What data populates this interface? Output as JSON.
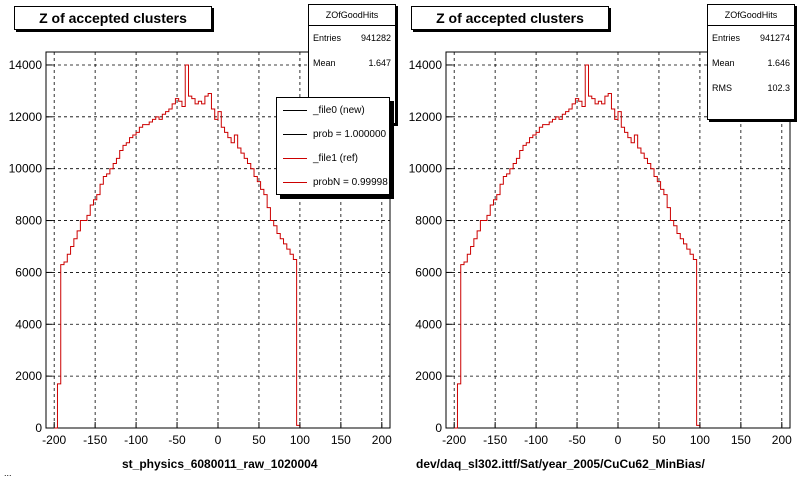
{
  "chart_data": [
    {
      "type": "histogram",
      "title": "Z of accepted clusters",
      "xlabel": "st_physics_6080011_raw_1020004",
      "xlim": [
        -210,
        210
      ],
      "ylim": [
        0,
        14500
      ],
      "x_ticks": [
        -200,
        -150,
        -100,
        -50,
        0,
        50,
        100,
        150,
        200
      ],
      "y_ticks": [
        0,
        2000,
        4000,
        6000,
        8000,
        10000,
        12000,
        14000
      ],
      "grid": true,
      "bin_edges_start": -200,
      "bin_width": 4,
      "values": [
        0,
        1700,
        6300,
        6400,
        6700,
        7000,
        7300,
        7600,
        8000,
        8000,
        8200,
        8600,
        8800,
        9000,
        9400,
        9700,
        9800,
        10000,
        10200,
        10400,
        10700,
        10900,
        11000,
        11200,
        11300,
        11400,
        11600,
        11700,
        11700,
        11800,
        11900,
        12000,
        11900,
        12100,
        12200,
        12300,
        12500,
        12700,
        12600,
        12400,
        14000,
        12800,
        12700,
        12500,
        12600,
        12500,
        12800,
        12900,
        12300,
        11900,
        12200,
        11600,
        11400,
        11200,
        11000,
        11300,
        10800,
        10600,
        10400,
        10200,
        10000,
        9700,
        9500,
        9200,
        9000,
        8500,
        8000,
        7800,
        7500,
        7300,
        7100,
        6900,
        6700,
        6500,
        100
      ],
      "stats": {
        "name": "ZOfGoodHits",
        "entries_label": "Entries",
        "entries": "941282",
        "mean_label": "Mean",
        "mean": "1.647"
      },
      "legend": [
        {
          "label": "_file0 (new)",
          "color": "#000000"
        },
        {
          "label": "prob = 1.000000",
          "color": "#000000"
        },
        {
          "label": "_file1 (ref)",
          "color": "#cc0000"
        },
        {
          "label": "probN = 0.99998",
          "color": "#cc0000"
        }
      ],
      "series_color": "#cc0000"
    },
    {
      "type": "histogram",
      "title": "Z of accepted clusters",
      "xlabel": "dev/daq_sl302.ittf/Sat/year_2005/CuCu62_MinBias/",
      "xlim": [
        -210,
        210
      ],
      "ylim": [
        0,
        14500
      ],
      "x_ticks": [
        -200,
        -150,
        -100,
        -50,
        0,
        50,
        100,
        150,
        200
      ],
      "y_ticks": [
        0,
        2000,
        4000,
        6000,
        8000,
        10000,
        12000,
        14000
      ],
      "grid": true,
      "bin_edges_start": -200,
      "bin_width": 4,
      "values": [
        0,
        1700,
        6300,
        6400,
        6700,
        7000,
        7300,
        7600,
        8000,
        8000,
        8200,
        8600,
        8800,
        9000,
        9400,
        9700,
        9800,
        10000,
        10200,
        10400,
        10700,
        10900,
        11000,
        11200,
        11300,
        11400,
        11600,
        11700,
        11700,
        11800,
        11900,
        12000,
        11900,
        12100,
        12200,
        12300,
        12500,
        12700,
        12600,
        12400,
        14000,
        12800,
        12700,
        12500,
        12600,
        12500,
        12800,
        12900,
        12300,
        11900,
        12200,
        11600,
        11400,
        11200,
        11000,
        11300,
        10800,
        10600,
        10400,
        10200,
        10000,
        9700,
        9500,
        9200,
        9000,
        8500,
        8000,
        7800,
        7500,
        7300,
        7100,
        6900,
        6700,
        6500,
        100
      ],
      "stats": {
        "name": "ZOfGoodHits",
        "entries_label": "Entries",
        "entries": "941274",
        "mean_label": "Mean",
        "mean": "1.646",
        "rms_label": "RMS",
        "rms": "102.3"
      },
      "series_color": "#cc0000"
    }
  ],
  "corner_text": "..."
}
